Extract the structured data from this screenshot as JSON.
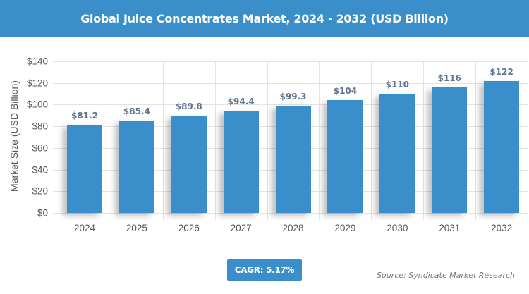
{
  "header": {
    "title": "Global Juice Concentrates Market, 2024 - 2032 (USD Billion)"
  },
  "footer": {
    "cagr": "CAGR: 5.17%",
    "source": "Source: Syndicate Market Research"
  },
  "colors": {
    "bar": "#3a8fcb",
    "header": "#3a8fcb",
    "label": "#5f7690"
  },
  "chart_data": {
    "type": "bar",
    "title": "Global Juice Concentrates Market, 2024 - 2032 (USD Billion)",
    "xlabel": "",
    "ylabel": "Market Size (USD Billion)",
    "categories": [
      "2024",
      "2025",
      "2026",
      "2027",
      "2028",
      "2029",
      "2030",
      "2031",
      "2032"
    ],
    "values": [
      81.2,
      85.4,
      89.8,
      94.4,
      99.3,
      104,
      110,
      116,
      122
    ],
    "value_labels": [
      "$81.2",
      "$85.4",
      "$89.8",
      "$94.4",
      "$99.3",
      "$104",
      "$110",
      "$116",
      "$122"
    ],
    "yticks": [
      "$0",
      "$20",
      "$40",
      "$60",
      "$80",
      "$100",
      "$120",
      "$140"
    ],
    "ylim": [
      0,
      140
    ],
    "grid": true,
    "legend": null,
    "annotations": [
      "CAGR: 5.17%",
      "Source: Syndicate Market Research"
    ]
  }
}
